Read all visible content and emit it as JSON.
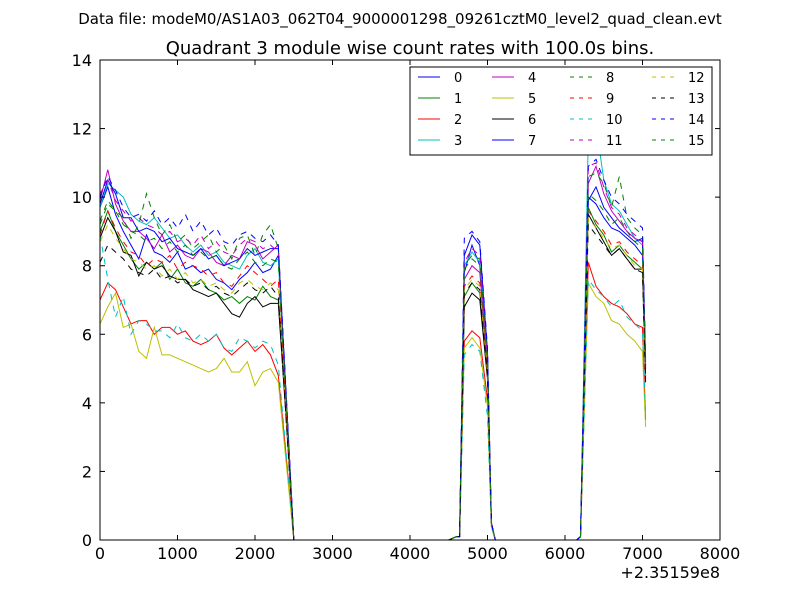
{
  "figure": {
    "suptitle": "Data file: modeM0/AS1A03_062T04_9000001298_09261cztM0_level2_quad_clean.evt"
  },
  "chart_data": {
    "type": "line",
    "title": "Quadrant 3 module wise count rates with 100.0s bins.",
    "xlabel": "",
    "ylabel": "",
    "x_offset_label": "+2.35159e8",
    "xlim": [
      0,
      8000
    ],
    "ylim": [
      0,
      14
    ],
    "xticks": [
      0,
      1000,
      2000,
      3000,
      4000,
      5000,
      6000,
      7000,
      8000
    ],
    "yticks": [
      0,
      2,
      4,
      6,
      8,
      10,
      12,
      14
    ],
    "grid": false,
    "legend": {
      "placement": "top-right",
      "columns": 4
    },
    "x": [
      0,
      100,
      200,
      300,
      400,
      500,
      600,
      700,
      800,
      900,
      1000,
      1100,
      1200,
      1300,
      1400,
      1500,
      1600,
      1700,
      1800,
      1900,
      2000,
      2100,
      2200,
      2300,
      2400,
      2500,
      2560,
      2700,
      3000,
      3500,
      4000,
      4500,
      4600,
      4640,
      4700,
      4800,
      4900,
      5000,
      5050,
      5100,
      5140,
      5500,
      6000,
      6100,
      6150,
      6200,
      6300,
      6400,
      6500,
      6600,
      6700,
      6800,
      6900,
      7000,
      7040
    ],
    "series": [
      {
        "name": "0",
        "color": "#0000ff",
        "dash": "solid",
        "values": [
          9.7,
          10.3,
          9.5,
          9.0,
          8.6,
          8.2,
          8.9,
          8.4,
          8.3,
          8.1,
          8.4,
          7.9,
          8.0,
          7.8,
          7.9,
          7.6,
          7.5,
          7.3,
          7.6,
          7.8,
          8.1,
          7.8,
          7.9,
          8.3,
          4.0,
          0.0,
          0.0,
          0.0,
          0.0,
          0.0,
          0.0,
          0.0,
          0.1,
          0.1,
          7.8,
          8.6,
          8.0,
          5.2,
          0.5,
          0.0,
          0.0,
          0.0,
          0.0,
          0.0,
          0.0,
          0.1,
          10.0,
          9.8,
          9.4,
          9.1,
          9.0,
          8.8,
          8.6,
          8.3,
          5.0
        ]
      },
      {
        "name": "1",
        "color": "#008000",
        "dash": "solid",
        "values": [
          9.0,
          9.6,
          9.0,
          8.6,
          8.2,
          7.9,
          8.1,
          7.9,
          8.1,
          7.6,
          7.9,
          7.5,
          7.4,
          7.6,
          7.3,
          7.2,
          7.0,
          7.1,
          6.9,
          7.1,
          7.0,
          7.4,
          7.1,
          7.0,
          3.8,
          0.0,
          0.0,
          0.0,
          0.0,
          0.0,
          0.0,
          0.0,
          0.1,
          0.1,
          7.1,
          7.5,
          7.2,
          4.9,
          0.5,
          0.0,
          0.0,
          0.0,
          0.0,
          0.0,
          0.0,
          0.1,
          9.7,
          9.2,
          8.9,
          8.4,
          8.6,
          8.3,
          8.1,
          7.9,
          4.8
        ]
      },
      {
        "name": "2",
        "color": "#ff0000",
        "dash": "solid",
        "values": [
          7.0,
          7.5,
          7.3,
          6.8,
          6.3,
          6.4,
          6.4,
          6.0,
          6.2,
          6.2,
          6.0,
          6.1,
          5.8,
          5.7,
          5.8,
          6.0,
          5.6,
          5.4,
          5.6,
          5.8,
          5.5,
          5.7,
          5.4,
          4.8,
          2.5,
          0.0,
          0.0,
          0.0,
          0.0,
          0.0,
          0.0,
          0.0,
          0.1,
          0.1,
          5.8,
          6.1,
          5.9,
          4.1,
          0.4,
          0.0,
          0.0,
          0.0,
          0.0,
          0.0,
          0.0,
          0.1,
          8.1,
          7.4,
          7.1,
          6.9,
          6.8,
          6.6,
          6.3,
          6.2,
          3.5
        ]
      },
      {
        "name": "3",
        "color": "#00bfbf",
        "dash": "solid",
        "values": [
          9.7,
          10.4,
          10.2,
          10.0,
          9.5,
          9.3,
          9.2,
          9.4,
          9.1,
          8.8,
          8.9,
          8.6,
          8.4,
          8.6,
          8.3,
          8.4,
          8.1,
          8.0,
          7.9,
          8.3,
          8.5,
          8.1,
          8.0,
          8.2,
          4.1,
          0.0,
          0.0,
          0.0,
          0.0,
          0.0,
          0.0,
          0.0,
          0.1,
          0.1,
          8.0,
          8.4,
          8.1,
          5.3,
          0.5,
          0.0,
          0.0,
          0.0,
          0.0,
          0.0,
          0.0,
          0.1,
          11.8,
          12.1,
          10.5,
          9.8,
          9.6,
          9.2,
          8.8,
          8.6,
          5.1
        ]
      },
      {
        "name": "4",
        "color": "#bf00bf",
        "dash": "solid",
        "values": [
          9.9,
          10.8,
          9.8,
          9.3,
          9.0,
          9.0,
          8.8,
          8.5,
          8.9,
          8.4,
          8.6,
          8.3,
          8.2,
          8.5,
          8.4,
          8.1,
          8.0,
          8.3,
          8.2,
          8.7,
          8.6,
          8.2,
          8.4,
          8.6,
          4.2,
          0.0,
          0.0,
          0.0,
          0.0,
          0.0,
          0.0,
          0.0,
          0.1,
          0.1,
          7.6,
          8.0,
          7.8,
          5.1,
          0.5,
          0.0,
          0.0,
          0.0,
          0.0,
          0.0,
          0.0,
          0.1,
          10.4,
          10.9,
          10.1,
          9.6,
          9.3,
          9.0,
          8.8,
          8.7,
          5.0
        ]
      },
      {
        "name": "5",
        "color": "#bfbf00",
        "dash": "solid",
        "values": [
          6.3,
          6.8,
          7.2,
          6.2,
          6.3,
          5.5,
          5.3,
          6.2,
          5.4,
          5.4,
          5.3,
          5.2,
          5.1,
          5.0,
          4.9,
          5.0,
          5.3,
          4.9,
          4.9,
          5.2,
          4.5,
          4.9,
          5.0,
          4.6,
          2.3,
          0.0,
          0.0,
          0.0,
          0.0,
          0.0,
          0.0,
          0.0,
          0.1,
          0.1,
          5.6,
          5.9,
          5.6,
          3.9,
          0.4,
          0.0,
          0.0,
          0.0,
          0.0,
          0.0,
          0.0,
          0.1,
          7.5,
          7.1,
          6.9,
          6.4,
          6.3,
          6.0,
          5.8,
          5.5,
          3.3
        ]
      },
      {
        "name": "6",
        "color": "#000000",
        "dash": "solid",
        "values": [
          8.8,
          9.4,
          9.0,
          8.4,
          8.3,
          7.7,
          8.1,
          7.9,
          8.0,
          7.7,
          7.6,
          7.6,
          7.3,
          7.2,
          7.1,
          7.2,
          6.9,
          6.6,
          6.5,
          6.9,
          7.1,
          6.8,
          6.9,
          6.9,
          3.6,
          0.0,
          0.0,
          0.0,
          0.0,
          0.0,
          0.0,
          0.0,
          0.1,
          0.1,
          6.8,
          7.2,
          7.0,
          4.7,
          0.5,
          0.0,
          0.0,
          0.0,
          0.0,
          0.0,
          0.0,
          0.1,
          9.5,
          9.1,
          8.7,
          8.3,
          8.5,
          8.2,
          7.9,
          7.9,
          4.6
        ]
      },
      {
        "name": "7",
        "color": "#0000ff",
        "dash": "solid",
        "values": [
          9.8,
          10.5,
          10.1,
          9.4,
          9.4,
          9.0,
          9.1,
          9.0,
          8.7,
          8.8,
          8.5,
          8.4,
          8.3,
          8.5,
          8.2,
          8.3,
          8.0,
          8.1,
          8.2,
          8.5,
          8.3,
          8.4,
          8.5,
          8.5,
          4.3,
          0.0,
          0.0,
          0.0,
          0.0,
          0.0,
          0.0,
          0.0,
          0.1,
          0.1,
          8.3,
          8.9,
          8.6,
          5.5,
          0.5,
          0.0,
          0.0,
          0.0,
          0.0,
          0.0,
          0.0,
          0.1,
          9.9,
          10.3,
          9.7,
          9.4,
          9.1,
          8.9,
          8.7,
          8.8,
          5.2
        ]
      },
      {
        "name": "8",
        "color": "#008000",
        "dash": "dashed",
        "values": [
          9.2,
          9.8,
          9.6,
          9.4,
          8.8,
          9.2,
          10.1,
          9.4,
          8.9,
          9.2,
          8.7,
          8.9,
          8.5,
          8.7,
          8.9,
          8.4,
          8.6,
          8.2,
          8.8,
          8.9,
          8.3,
          8.9,
          9.2,
          8.5,
          4.3,
          0.0,
          0.0,
          0.0,
          0.0,
          0.0,
          0.0,
          0.0,
          0.1,
          0.1,
          8.0,
          8.3,
          8.2,
          5.4,
          0.5,
          0.0,
          0.0,
          0.0,
          0.0,
          0.0,
          0.0,
          0.1,
          10.6,
          10.7,
          10.4,
          9.7,
          10.6,
          9.4,
          9.1,
          8.9,
          5.1
        ]
      },
      {
        "name": "9",
        "color": "#ff0000",
        "dash": "dashed",
        "values": [
          8.9,
          9.6,
          9.1,
          8.7,
          8.4,
          8.3,
          8.0,
          8.2,
          8.1,
          8.3,
          7.9,
          8.1,
          8.0,
          7.9,
          7.7,
          7.8,
          7.5,
          7.4,
          7.7,
          8.0,
          7.8,
          7.6,
          7.4,
          7.6,
          3.9,
          0.0,
          0.0,
          0.0,
          0.0,
          0.0,
          0.0,
          0.0,
          0.1,
          0.1,
          7.4,
          7.7,
          7.5,
          5.0,
          0.5,
          0.0,
          0.0,
          0.0,
          0.0,
          0.0,
          0.0,
          0.1,
          9.6,
          9.3,
          9.0,
          8.6,
          8.7,
          8.4,
          8.2,
          8.0,
          4.7
        ]
      },
      {
        "name": "10",
        "color": "#00bfbf",
        "dash": "dashed",
        "values": [
          8.9,
          7.6,
          6.5,
          7.1,
          6.0,
          6.4,
          6.3,
          6.1,
          6.1,
          5.9,
          6.3,
          5.9,
          5.8,
          6.0,
          5.8,
          6.0,
          5.6,
          5.5,
          5.9,
          5.8,
          5.6,
          5.8,
          5.7,
          5.1,
          2.6,
          0.0,
          0.0,
          0.0,
          0.0,
          0.0,
          0.0,
          0.0,
          0.1,
          0.1,
          5.4,
          5.7,
          5.5,
          3.6,
          0.4,
          0.0,
          0.0,
          0.0,
          0.0,
          0.0,
          0.0,
          0.1,
          7.6,
          7.3,
          7.1,
          6.8,
          7.0,
          6.5,
          6.3,
          6.1,
          3.6
        ]
      },
      {
        "name": "11",
        "color": "#bf00bf",
        "dash": "dashed",
        "values": [
          10.1,
          10.5,
          9.9,
          9.6,
          9.3,
          9.4,
          9.2,
          9.1,
          8.9,
          9.0,
          8.7,
          8.8,
          8.6,
          8.9,
          8.5,
          8.7,
          8.4,
          8.3,
          8.6,
          8.8,
          8.7,
          8.5,
          8.6,
          8.4,
          4.3,
          0.0,
          0.0,
          0.0,
          0.0,
          0.0,
          0.0,
          0.0,
          0.1,
          0.1,
          8.1,
          8.5,
          8.3,
          5.4,
          0.5,
          0.0,
          0.0,
          0.0,
          0.0,
          0.0,
          0.0,
          0.1,
          10.9,
          11.0,
          10.3,
          9.7,
          9.5,
          9.1,
          8.9,
          8.7,
          5.1
        ]
      },
      {
        "name": "12",
        "color": "#bfbf00",
        "dash": "dashed",
        "values": [
          8.7,
          9.2,
          8.8,
          8.5,
          8.2,
          8.1,
          7.9,
          8.0,
          7.7,
          7.9,
          7.6,
          7.8,
          7.5,
          7.6,
          7.4,
          7.5,
          7.3,
          7.2,
          7.5,
          7.6,
          7.4,
          7.3,
          7.5,
          7.3,
          3.7,
          0.0,
          0.0,
          0.0,
          0.0,
          0.0,
          0.0,
          0.0,
          0.1,
          0.1,
          7.3,
          7.6,
          7.4,
          4.9,
          0.5,
          0.0,
          0.0,
          0.0,
          0.0,
          0.0,
          0.0,
          0.1,
          9.4,
          9.1,
          8.8,
          8.5,
          8.6,
          8.3,
          8.0,
          7.9,
          4.6
        ]
      },
      {
        "name": "13",
        "color": "#000000",
        "dash": "dashed",
        "values": [
          8.1,
          8.6,
          8.4,
          8.2,
          7.9,
          7.8,
          7.7,
          7.9,
          7.6,
          7.7,
          7.5,
          7.6,
          7.4,
          7.5,
          7.3,
          7.4,
          7.2,
          7.1,
          7.3,
          7.5,
          7.3,
          7.2,
          7.4,
          7.1,
          3.6,
          0.0,
          0.0,
          0.0,
          0.0,
          0.0,
          0.0,
          0.0,
          0.1,
          0.1,
          7.2,
          7.5,
          7.3,
          4.8,
          0.5,
          0.0,
          0.0,
          0.0,
          0.0,
          0.0,
          0.0,
          0.1,
          9.2,
          8.9,
          8.6,
          8.3,
          8.5,
          8.2,
          7.9,
          7.8,
          4.5
        ]
      },
      {
        "name": "14",
        "color": "#0000ff",
        "dash": "dashed",
        "values": [
          10.0,
          10.6,
          10.2,
          9.7,
          9.4,
          9.5,
          9.3,
          9.6,
          9.2,
          9.4,
          9.1,
          9.5,
          9.0,
          9.3,
          8.9,
          9.1,
          8.7,
          8.6,
          8.9,
          9.0,
          8.8,
          8.7,
          8.9,
          8.6,
          4.4,
          0.0,
          0.0,
          0.0,
          0.0,
          0.0,
          0.0,
          0.0,
          0.1,
          0.1,
          8.8,
          9.0,
          8.7,
          5.6,
          0.5,
          0.0,
          0.0,
          0.0,
          0.0,
          0.0,
          0.0,
          0.1,
          10.9,
          11.1,
          10.5,
          10.0,
          9.8,
          9.5,
          9.3,
          9.1,
          5.3
        ]
      },
      {
        "name": "15",
        "color": "#008000",
        "dash": "dashed",
        "values": [
          9.3,
          9.9,
          9.6,
          9.2,
          9.0,
          8.9,
          8.7,
          8.8,
          8.5,
          8.7,
          8.4,
          8.6,
          8.3,
          8.4,
          8.2,
          8.3,
          8.0,
          7.9,
          8.2,
          8.4,
          8.1,
          8.0,
          8.2,
          8.1,
          4.1,
          0.0,
          0.0,
          0.0,
          0.0,
          0.0,
          0.0,
          0.0,
          0.1,
          0.1,
          7.9,
          8.2,
          8.0,
          5.2,
          0.5,
          0.0,
          0.0,
          0.0,
          0.0,
          0.0,
          0.0,
          0.1,
          10.1,
          9.9,
          9.6,
          9.2,
          9.4,
          9.0,
          8.7,
          8.5,
          5.0
        ]
      }
    ]
  }
}
